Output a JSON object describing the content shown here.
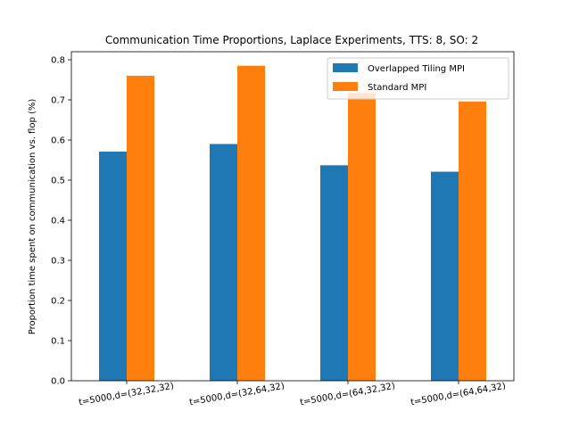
{
  "chart_data": {
    "type": "bar",
    "title": "Communication Time Proportions, Laplace Experiments, TTS: 8, SO: 2",
    "xlabel": "",
    "ylabel": "Proportion time spent on communication vs. flop (%)",
    "categories": [
      "t=5000,d=(32,32,32)",
      "t=5000,d=(32,64,32)",
      "t=5000,d=(64,32,32)",
      "t=5000,d=(64,64,32)"
    ],
    "series": [
      {
        "name": "Overlapped Tiling MPI",
        "color": "#1f77b4",
        "values": [
          0.571,
          0.59,
          0.537,
          0.521
        ]
      },
      {
        "name": "Standard MPI",
        "color": "#ff7f0e",
        "values": [
          0.76,
          0.785,
          0.717,
          0.696
        ]
      }
    ],
    "ylim": [
      0,
      0.82
    ],
    "yticks": [
      0.0,
      0.1,
      0.2,
      0.3,
      0.4,
      0.5,
      0.6,
      0.7,
      0.8
    ],
    "ytick_labels": [
      "0.0",
      "0.1",
      "0.2",
      "0.3",
      "0.4",
      "0.5",
      "0.6",
      "0.7",
      "0.8"
    ],
    "grid": false,
    "legend_position": "top-right"
  }
}
